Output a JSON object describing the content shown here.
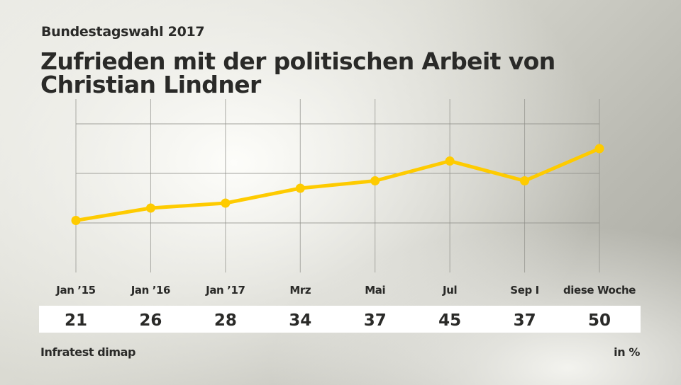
{
  "header": {
    "subtitle": "Bundestagswahl 2017",
    "title": "Zufrieden mit der politischen Arbeit von Christian Lindner"
  },
  "footer": {
    "source": "Infratest dimap",
    "unit": "in %"
  },
  "colors": {
    "line": "#fecb00",
    "grid": "#8e8e88",
    "band": "#ffffff",
    "text": "#2a2a28"
  },
  "chart_data": {
    "type": "line",
    "title": "Zufrieden mit der politischen Arbeit von Christian Lindner",
    "subtitle": "Bundestagswahl 2017",
    "categories": [
      "Jan ’15",
      "Jan ’16",
      "Jan ’17",
      "Mrz",
      "Mai",
      "Jul",
      "Sep I",
      "diese Woche"
    ],
    "series": [
      {
        "name": "Zufrieden",
        "values": [
          21,
          26,
          28,
          34,
          37,
          45,
          37,
          50
        ]
      }
    ],
    "value_labels": [
      "21",
      "26",
      "28",
      "34",
      "37",
      "45",
      "37",
      "50"
    ],
    "xlabel": "",
    "ylabel": "in %",
    "ylim": [
      0,
      70
    ],
    "gridlines_y": [
      20,
      40,
      60
    ],
    "grid": true,
    "legend": "none",
    "source": "Infratest dimap"
  }
}
